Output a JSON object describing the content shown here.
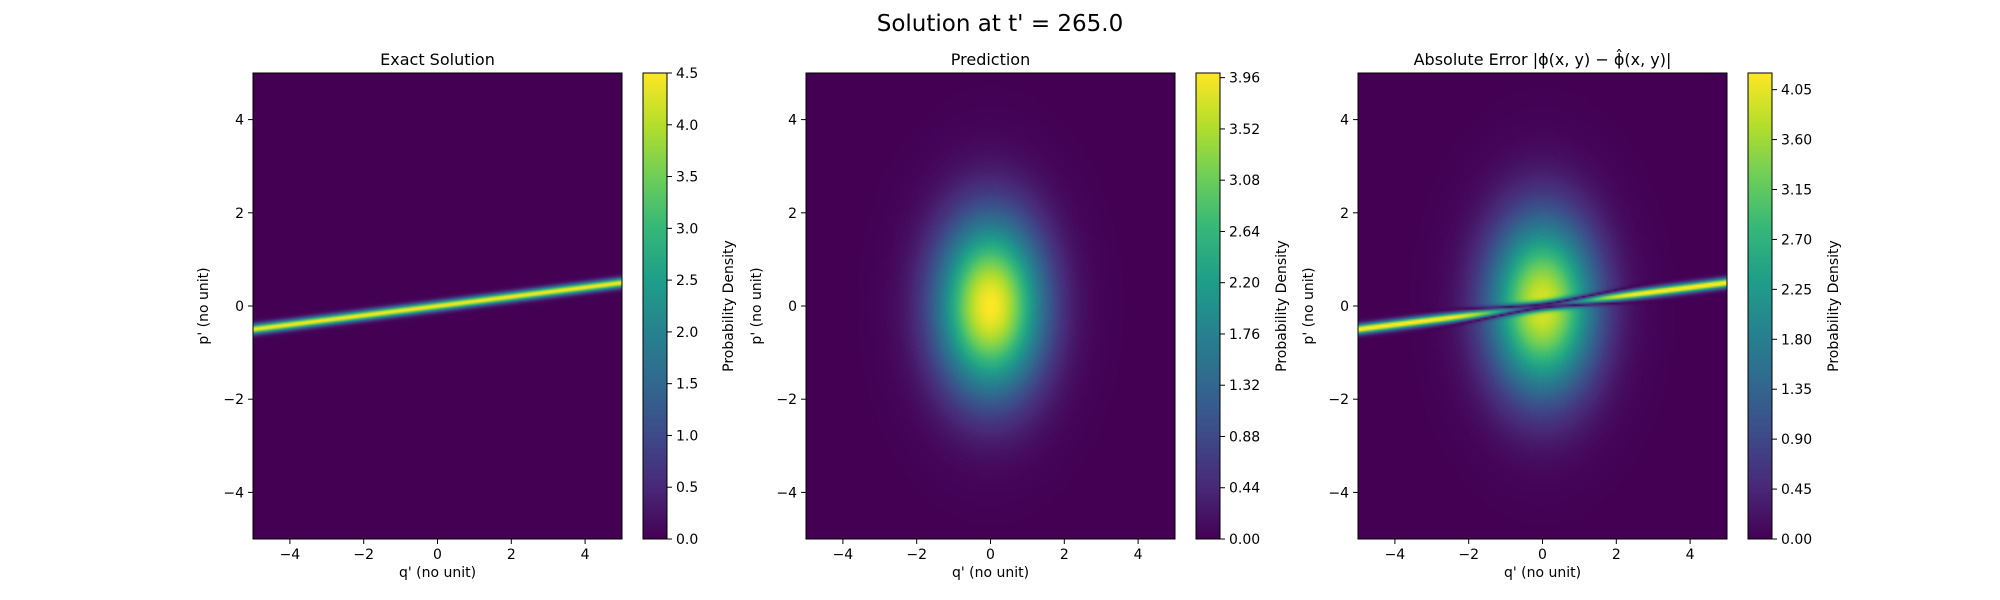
{
  "figure": {
    "suptitle": "Solution at t' = 265.0"
  },
  "chart_data": [
    {
      "type": "heatmap",
      "title": "Exact Solution",
      "xlabel": "q' (no unit)",
      "ylabel": "p' (no unit)",
      "xlim": [
        -5,
        5
      ],
      "ylim": [
        -5,
        5
      ],
      "xticks": [
        "−4",
        "−2",
        "0",
        "2",
        "4"
      ],
      "yticks": [
        "−4",
        "−2",
        "0",
        "2",
        "4"
      ],
      "colormap": "viridis",
      "colorbar": {
        "label": "Probability Density",
        "range": [
          0,
          4.5
        ],
        "ticks": [
          "0.0",
          "0.5",
          "1.0",
          "1.5",
          "2.0",
          "2.5",
          "3.0",
          "3.5",
          "4.0",
          "4.5"
        ]
      },
      "field": {
        "shape": "thin ridge",
        "ridge_line_slope": 0.1,
        "peak": 4.5
      }
    },
    {
      "type": "heatmap",
      "title": "Prediction",
      "xlabel": "q' (no unit)",
      "ylabel": "p' (no unit)",
      "xlim": [
        -5,
        5
      ],
      "ylim": [
        -5,
        5
      ],
      "xticks": [
        "−4",
        "−2",
        "0",
        "2",
        "4"
      ],
      "yticks": [
        "−4",
        "−2",
        "0",
        "2",
        "4"
      ],
      "colormap": "viridis",
      "colorbar": {
        "label": "Probability Density",
        "range": [
          0,
          4.0
        ],
        "ticks": [
          "0.00",
          "0.44",
          "0.88",
          "1.32",
          "1.76",
          "2.20",
          "2.64",
          "3.08",
          "3.52",
          "3.96"
        ]
      },
      "field": {
        "shape": "gaussian blob",
        "center": [
          0,
          0
        ],
        "sigma_q": 1.0,
        "sigma_p": 1.3,
        "peak": 4.0
      }
    },
    {
      "type": "heatmap",
      "title": "Absolute Error |ϕ(x, y) − ϕ̂(x, y)|",
      "xlabel": "q' (no unit)",
      "ylabel": "p' (no unit)",
      "xlim": [
        -5,
        5
      ],
      "ylim": [
        -5,
        5
      ],
      "xticks": [
        "−4",
        "−2",
        "0",
        "2",
        "4"
      ],
      "yticks": [
        "−4",
        "−2",
        "0",
        "2",
        "4"
      ],
      "colormap": "viridis",
      "colorbar": {
        "label": "Probability Density",
        "range": [
          0,
          4.2
        ],
        "ticks": [
          "0.00",
          "0.45",
          "0.90",
          "1.35",
          "1.80",
          "2.25",
          "2.70",
          "3.15",
          "3.60",
          "4.05"
        ]
      },
      "field": {
        "shape": "absolute difference of ridge and blob",
        "peak": 4.2
      }
    }
  ]
}
